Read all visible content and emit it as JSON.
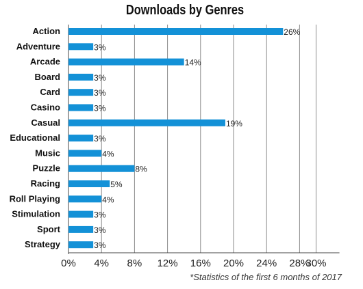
{
  "chart_data": {
    "type": "bar",
    "orientation": "horizontal",
    "title": "Downloads by Genres",
    "footnote": "*Statistics of the first 6 months of 2017",
    "categories": [
      "Action",
      "Adventure",
      "Arcade",
      "Board",
      "Card",
      "Casino",
      "Casual",
      "Educational",
      "Music",
      "Puzzle",
      "Racing",
      "Roll Playing",
      "Stimulation",
      "Sport",
      "Strategy"
    ],
    "values": [
      26,
      3,
      14,
      3,
      3,
      3,
      19,
      3,
      4,
      8,
      5,
      4,
      3,
      3,
      3
    ],
    "value_labels": [
      "26%",
      "3%",
      "14%",
      "3%",
      "3%",
      "3%",
      "19%",
      "3%",
      "4%",
      "8%",
      "5%",
      "4%",
      "3%",
      "3%",
      "3%"
    ],
    "xticks": [
      0,
      4,
      8,
      12,
      16,
      20,
      24,
      28,
      30
    ],
    "xtick_labels": [
      "0%",
      "4%",
      "8%",
      "12%",
      "16%",
      "20%",
      "24%",
      "28%",
      "30%"
    ],
    "xlim": [
      0,
      32
    ],
    "xlabel": "",
    "ylabel": "",
    "grid": "vertical",
    "bar_color": "#1391D7",
    "grid_color": "#8a8a8a"
  }
}
